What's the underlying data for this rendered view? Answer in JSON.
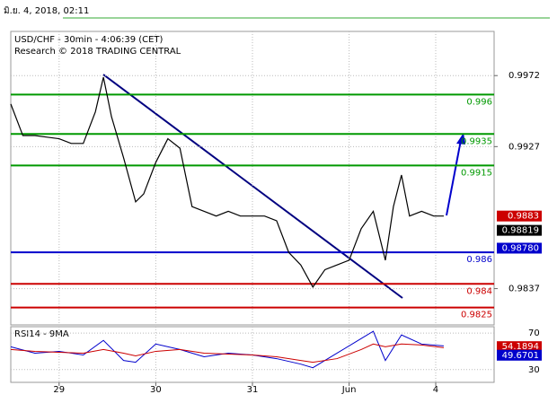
{
  "header": "มิ.ย. 4, 2018, 02:11",
  "chart_data": {
    "type": "line",
    "title": "USD/CHF - 30min - 4:06:39 (CET)",
    "subtitle": "Research © 2018 TRADING CENTRAL",
    "xlim": [
      0,
      240
    ],
    "xticks": [
      {
        "value": 24,
        "label": "29"
      },
      {
        "value": 72,
        "label": "30"
      },
      {
        "value": 120,
        "label": "31"
      },
      {
        "value": 168,
        "label": "Jun"
      },
      {
        "value": 211,
        "label": "4"
      }
    ],
    "ylim": [
      0.9814,
      1.0
    ],
    "yticks": [
      0.9837,
      0.9927,
      0.9972
    ],
    "grid": true,
    "price": {
      "color": "#000000",
      "x": [
        0,
        6,
        12,
        18,
        24,
        30,
        36,
        42,
        46,
        50,
        56,
        62,
        66,
        72,
        78,
        84,
        90,
        96,
        102,
        108,
        114,
        120,
        126,
        132,
        138,
        144,
        150,
        156,
        162,
        168,
        174,
        180,
        186,
        190,
        194,
        198,
        204,
        210,
        215
      ],
      "values": [
        0.9954,
        0.9934,
        0.9934,
        0.9933,
        0.9932,
        0.9929,
        0.9929,
        0.9949,
        0.9971,
        0.9946,
        0.992,
        0.9892,
        0.9897,
        0.9917,
        0.9932,
        0.9926,
        0.9889,
        0.9886,
        0.9883,
        0.9886,
        0.9883,
        0.9883,
        0.9883,
        0.988,
        0.986,
        0.9852,
        0.9838,
        0.9849,
        0.9852,
        0.9855,
        0.9875,
        0.9886,
        0.9855,
        0.9889,
        0.9909,
        0.9883,
        0.9886,
        0.9883,
        0.9883
      ]
    },
    "levels": [
      {
        "value": 0.996,
        "color": "#009900"
      },
      {
        "value": 0.9935,
        "color": "#009900"
      },
      {
        "value": 0.9915,
        "color": "#009900"
      },
      {
        "value": 0.986,
        "color": "#0000cc"
      },
      {
        "value": 0.984,
        "color": "#cc0000"
      },
      {
        "value": 0.9825,
        "color": "#cc0000"
      }
    ],
    "tags": [
      {
        "value": 0.9883,
        "color": "#cc0000"
      },
      {
        "value": 0.98819,
        "color": "#000000"
      },
      {
        "value": 0.9878,
        "label": "0.98780",
        "color": "#0000cc"
      }
    ],
    "rsi": {
      "title": "RSI14 - 9MA",
      "ylim": [
        16,
        77
      ],
      "yticks": [
        30,
        70
      ],
      "series": [
        {
          "color": "#0000cc",
          "x": [
            0,
            12,
            24,
            36,
            46,
            56,
            62,
            72,
            84,
            96,
            108,
            120,
            132,
            144,
            150,
            162,
            174,
            180,
            186,
            194,
            204,
            215
          ],
          "values": [
            55,
            48,
            50,
            46,
            62,
            40,
            38,
            58,
            52,
            44,
            48,
            46,
            42,
            36,
            32,
            48,
            64,
            72,
            40,
            68,
            58,
            56
          ]
        },
        {
          "color": "#cc0000",
          "x": [
            0,
            12,
            24,
            36,
            46,
            56,
            62,
            72,
            84,
            96,
            108,
            120,
            132,
            144,
            150,
            162,
            174,
            180,
            186,
            194,
            204,
            215
          ],
          "values": [
            52,
            50,
            49,
            48,
            52,
            48,
            45,
            50,
            52,
            48,
            47,
            46,
            44,
            40,
            38,
            42,
            52,
            58,
            55,
            58,
            57,
            54
          ]
        }
      ],
      "tags": [
        {
          "value": 54.1894,
          "color": "#cc0000"
        },
        {
          "value": 49.6701,
          "color": "#0000cc"
        }
      ]
    }
  }
}
